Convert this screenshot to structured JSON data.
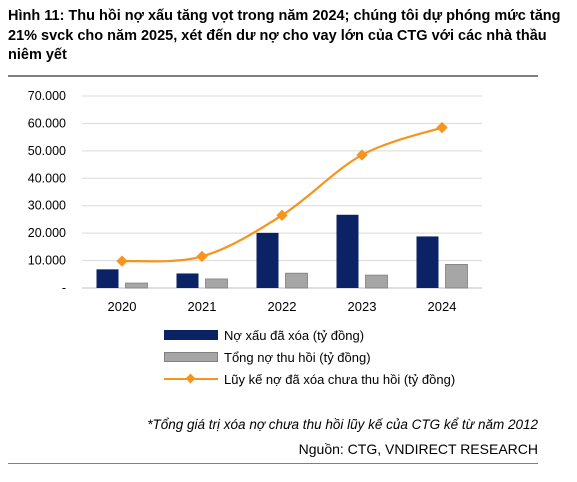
{
  "title": "Hình 11: Thu hồi nợ xấu tăng vọt trong năm 2024; chúng tôi dự phóng mức tăng 21% svck cho năm 2025, xét đến dư nợ cho vay lớn của CTG với các nhà thầu niêm yết",
  "footnote": "*Tổng giá trị xóa nợ chưa thu hồi lũy kế của CTG kể từ năm 2012",
  "source": "Nguồn: CTG, VNDIRECT RESEARCH",
  "chart_data": {
    "type": "bar",
    "categories": [
      "2020",
      "2021",
      "2022",
      "2023",
      "2024"
    ],
    "ylim": [
      0,
      70000
    ],
    "yticks": [
      0,
      10000,
      20000,
      30000,
      40000,
      50000,
      60000,
      70000
    ],
    "ytick_labels": [
      "-",
      "10.000",
      "20.000",
      "30.000",
      "40.000",
      "50.000",
      "60.000",
      "70.000"
    ],
    "grid": true,
    "legend_position": "bottom",
    "series": [
      {
        "name": "Nợ xấu đã xóa (tỷ đồng)",
        "kind": "bar",
        "color": "#0b2265",
        "values": [
          6800,
          5300,
          20100,
          26700,
          18800
        ]
      },
      {
        "name": "Tổng nợ thu hồi (tỷ đồng)",
        "kind": "bar",
        "color": "#a6a6a6",
        "values": [
          1800,
          3300,
          5400,
          4700,
          8600
        ]
      },
      {
        "name": "Lũy kế nợ đã xóa chưa thu hồi (tỷ đồng)",
        "kind": "line",
        "color": "#f7941d",
        "values": [
          9800,
          11500,
          26500,
          48500,
          58500
        ]
      }
    ]
  }
}
